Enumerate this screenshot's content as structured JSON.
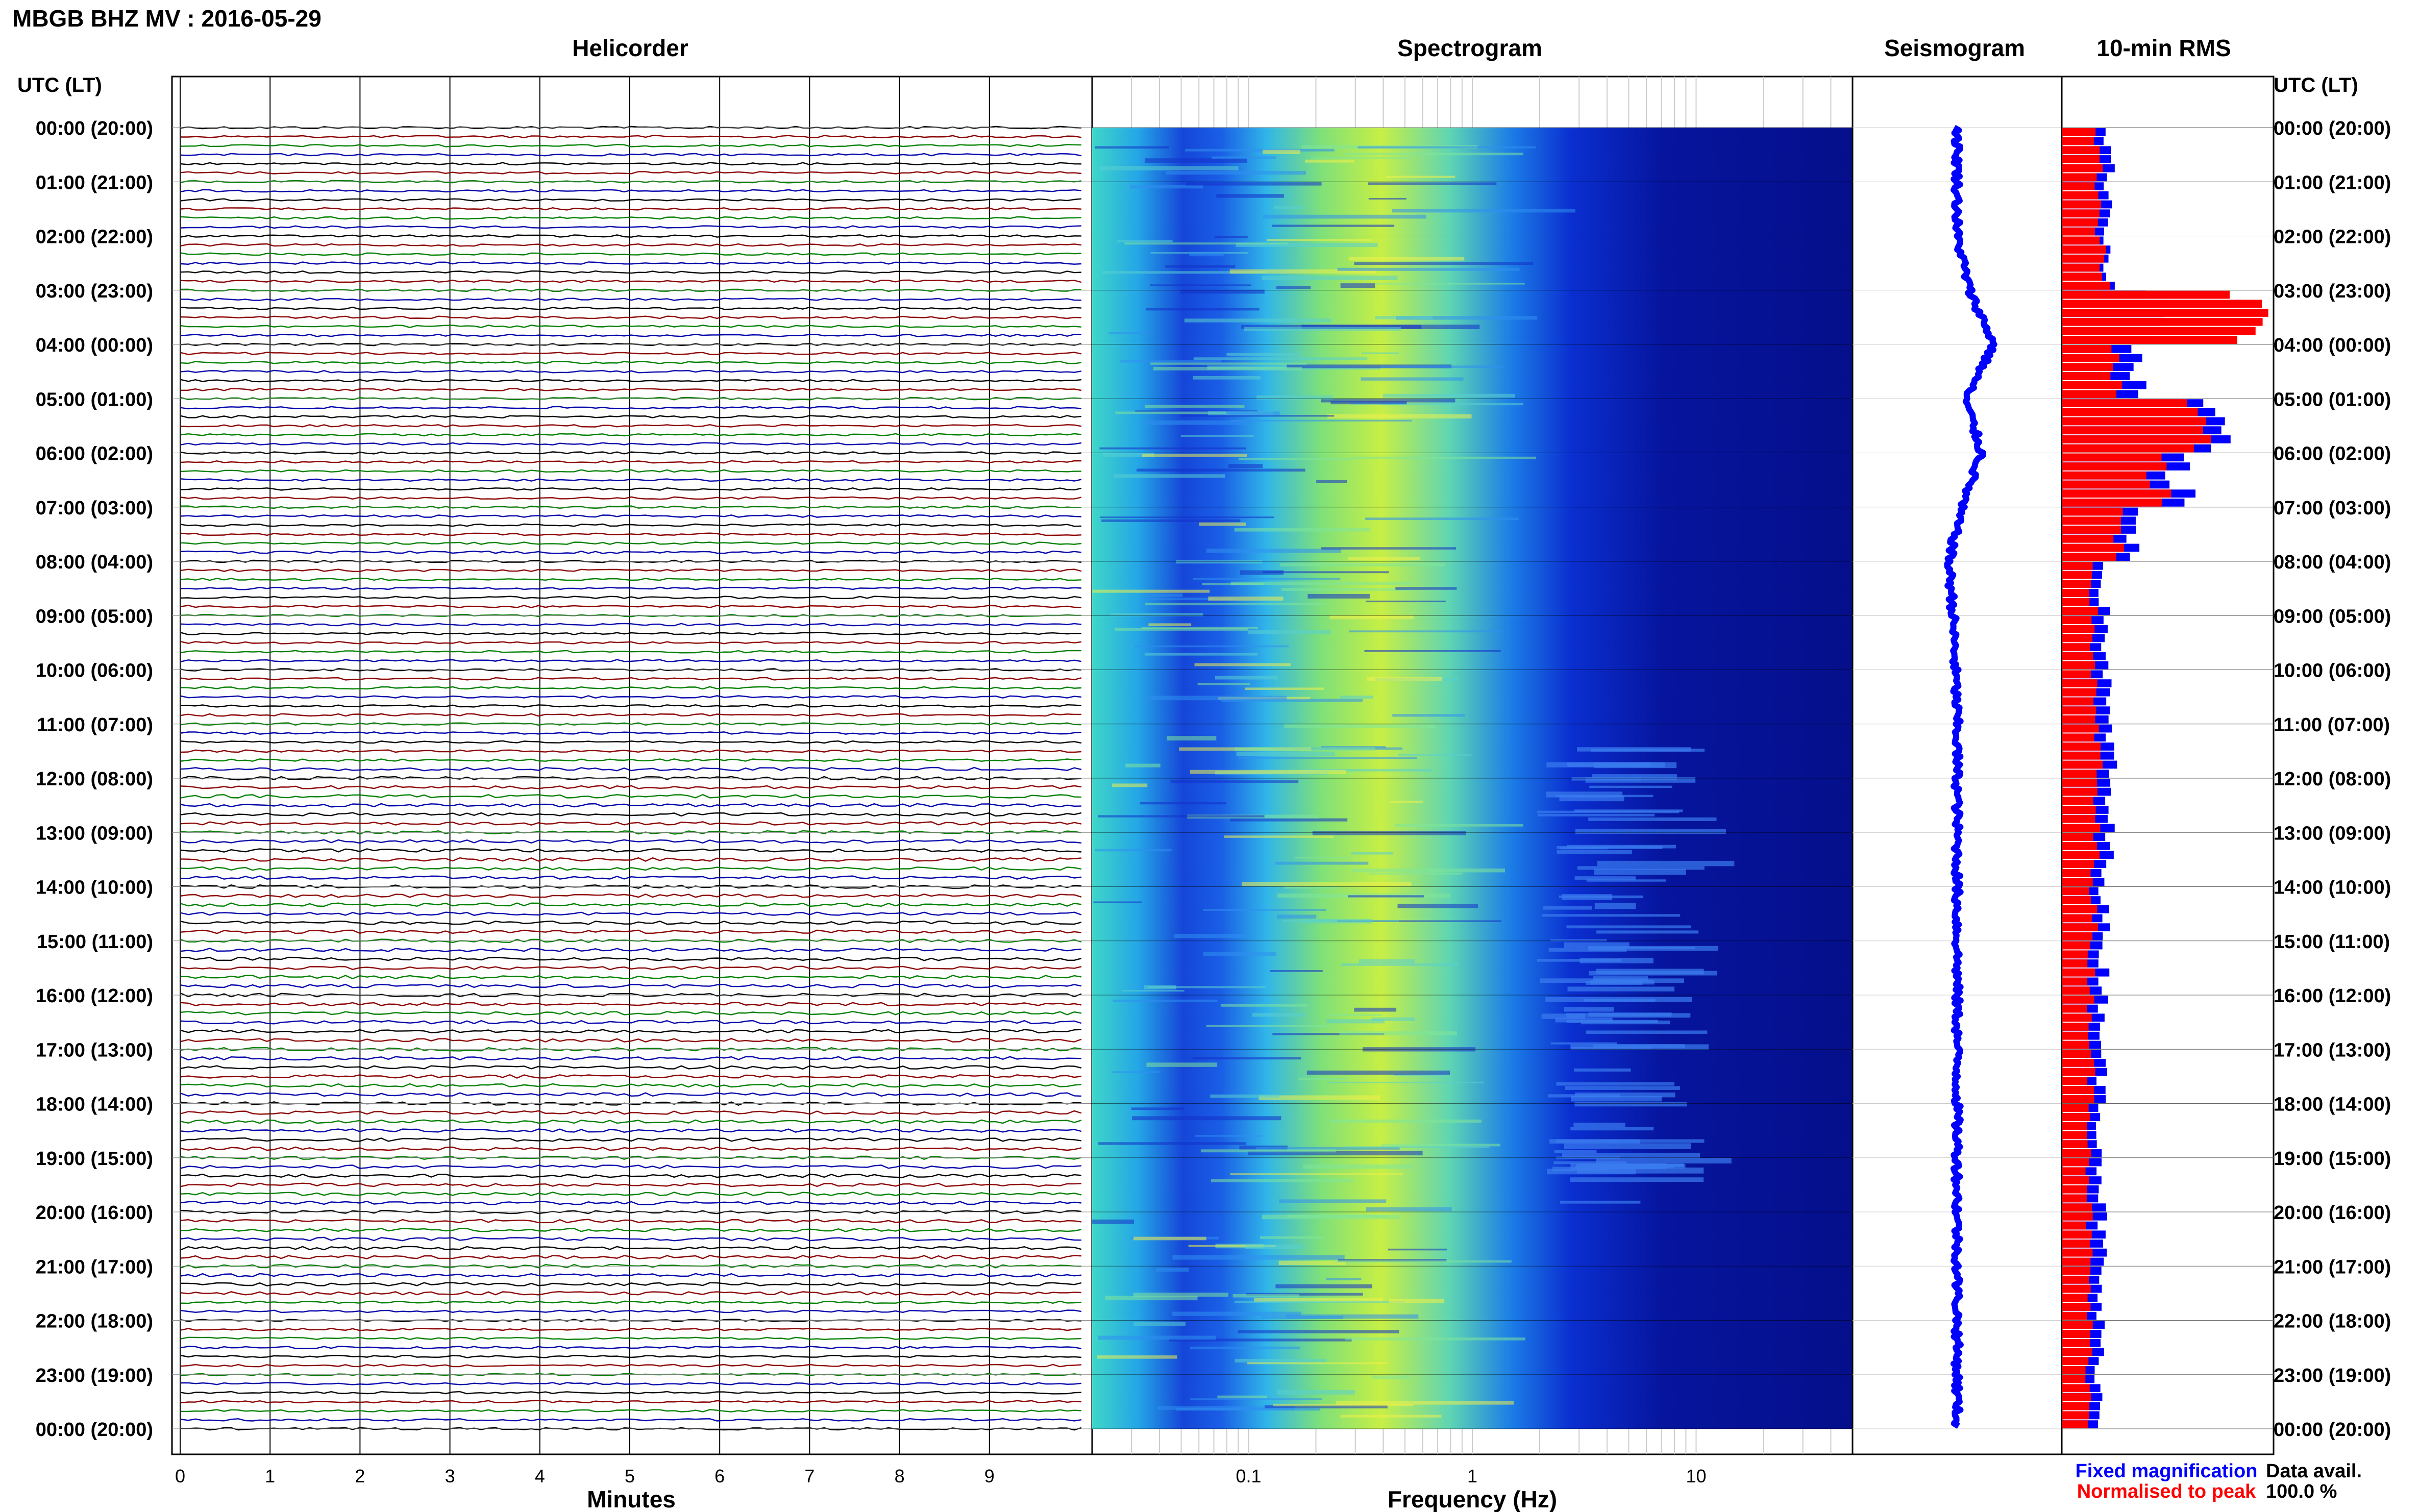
{
  "page_title": "MBGB BHZ MV : 2016-05-29",
  "panels": {
    "helicorder": "Helicorder",
    "spectrogram": "Spectrogram",
    "seismogram": "Seismogram",
    "rms": "10-min RMS"
  },
  "time_axis_header": "UTC (LT)",
  "time_labels": [
    "00:00 (20:00)",
    "01:00 (21:00)",
    "02:00 (22:00)",
    "03:00 (23:00)",
    "04:00 (00:00)",
    "05:00 (01:00)",
    "06:00 (02:00)",
    "07:00 (03:00)",
    "08:00 (04:00)",
    "09:00 (05:00)",
    "10:00 (06:00)",
    "11:00 (07:00)",
    "12:00 (08:00)",
    "13:00 (09:00)",
    "14:00 (10:00)",
    "15:00 (11:00)",
    "16:00 (12:00)",
    "17:00 (13:00)",
    "18:00 (14:00)",
    "19:00 (15:00)",
    "20:00 (16:00)",
    "21:00 (17:00)",
    "22:00 (18:00)",
    "23:00 (19:00)",
    "00:00 (20:00)"
  ],
  "helicorder_xlabel": "Minutes",
  "helicorder_ticks": [
    "0",
    "1",
    "2",
    "3",
    "4",
    "5",
    "6",
    "7",
    "8",
    "9"
  ],
  "spectrogram_xlabel": "Frequency (Hz)",
  "spectrogram_ticks": [
    "0.1",
    "1",
    "10"
  ],
  "legend": {
    "fixed": "Fixed magnification",
    "normalised": "Normalised to peak",
    "fixed_color": "#0000ff",
    "normalised_color": "#ff0000"
  },
  "data_avail_label": "Data avail.",
  "data_avail_value": "100.0 %",
  "trace_colors": [
    "#000000",
    "#8b0000",
    "#008000",
    "#0000aa"
  ],
  "chart_data": {
    "type": "line",
    "rms": {
      "series": [
        {
          "name": "Fixed magnification",
          "color": "#0000ff"
        },
        {
          "name": "Normalised to peak",
          "color": "#ff0000"
        }
      ],
      "hours": [
        0,
        1,
        2,
        3,
        4,
        5,
        6,
        7,
        8,
        9,
        10,
        11,
        12,
        13,
        14,
        15,
        16,
        17,
        18,
        19,
        20,
        21,
        22,
        23
      ],
      "fixed_relative": [
        0.22,
        0.23,
        0.22,
        0.45,
        0.35,
        0.7,
        0.55,
        0.35,
        0.2,
        0.21,
        0.21,
        0.23,
        0.22,
        0.22,
        0.2,
        0.2,
        0.2,
        0.19,
        0.19,
        0.19,
        0.19,
        0.18,
        0.18,
        0.18
      ],
      "normalised_relative": [
        0.17,
        0.18,
        0.2,
        0.9,
        0.25,
        0.62,
        0.45,
        0.28,
        0.15,
        0.15,
        0.15,
        0.17,
        0.16,
        0.16,
        0.15,
        0.14,
        0.14,
        0.14,
        0.14,
        0.13,
        0.13,
        0.13,
        0.13,
        0.13
      ]
    },
    "seismogram_offsets": [
      0,
      0,
      0,
      0.3,
      0.9,
      0.2,
      0.6,
      0.1,
      -0.2,
      -0.1,
      -0.05,
      0,
      0,
      0,
      0,
      0,
      0,
      0,
      0,
      0,
      0,
      0,
      0,
      0,
      0
    ]
  }
}
